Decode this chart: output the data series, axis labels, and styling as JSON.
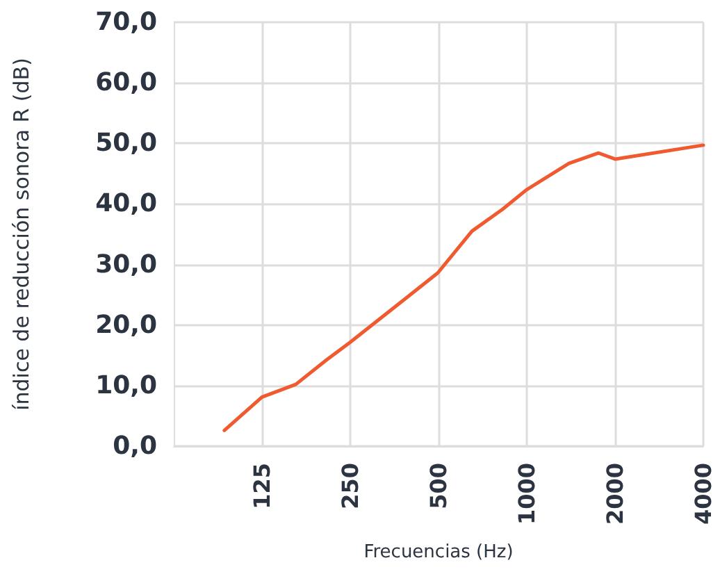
{
  "chart_data": {
    "type": "line",
    "xlabel": "Frecuencias (Hz)",
    "ylabel": "índice de reducción sonora R (dB)",
    "x": [
      93,
      125,
      163,
      207,
      249,
      403,
      497,
      650,
      826,
      996,
      1392,
      1757,
      2000,
      4000
    ],
    "series": [
      {
        "color": "#f05a30",
        "values": [
          2.6,
          8.1,
          10.2,
          14.2,
          17.1,
          25.1,
          28.6,
          35.5,
          39.1,
          42.3,
          46.7,
          48.4,
          47.4,
          49.7
        ]
      }
    ],
    "log": "x",
    "xlim": [
      62.5,
      4000
    ],
    "xticks": [
      125,
      250,
      500,
      1000,
      2000,
      4000
    ],
    "ylim": [
      0,
      70
    ],
    "yticks": [
      {
        "value": 0,
        "label": "0,0"
      },
      {
        "value": 10,
        "label": "10,0"
      },
      {
        "value": 20,
        "label": "20,0"
      },
      {
        "value": 30,
        "label": "30,0"
      },
      {
        "value": 40,
        "label": "40,0"
      },
      {
        "value": 50,
        "label": "50,0"
      },
      {
        "value": 60,
        "label": "60,0"
      },
      {
        "value": 70,
        "label": "70,0"
      }
    ],
    "grid": true,
    "marker": "none",
    "line_style": "solid"
  }
}
